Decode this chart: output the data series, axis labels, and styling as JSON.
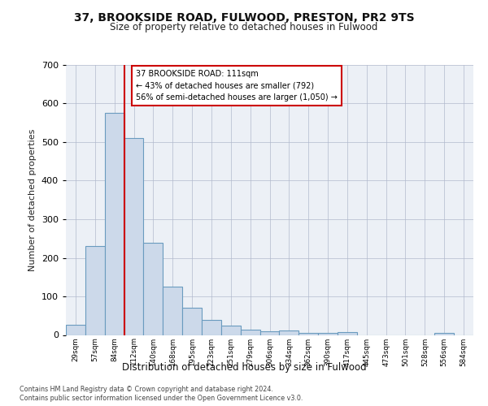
{
  "title_line1": "37, BROOKSIDE ROAD, FULWOOD, PRESTON, PR2 9TS",
  "title_line2": "Size of property relative to detached houses in Fulwood",
  "xlabel": "Distribution of detached houses by size in Fulwood",
  "ylabel": "Number of detached properties",
  "bar_color": "#ccd9ea",
  "bar_edge_color": "#6a9bbf",
  "annotation_text": "37 BROOKSIDE ROAD: 111sqm\n← 43% of detached houses are smaller (792)\n56% of semi-detached houses are larger (1,050) →",
  "annotation_box_color": "#ffffff",
  "annotation_box_edge_color": "#cc0000",
  "vline_color": "#cc0000",
  "footer_line1": "Contains HM Land Registry data © Crown copyright and database right 2024.",
  "footer_line2": "Contains public sector information licensed under the Open Government Licence v3.0.",
  "bin_labels": [
    "29sqm",
    "57sqm",
    "84sqm",
    "112sqm",
    "140sqm",
    "168sqm",
    "195sqm",
    "223sqm",
    "251sqm",
    "279sqm",
    "306sqm",
    "334sqm",
    "362sqm",
    "390sqm",
    "417sqm",
    "445sqm",
    "473sqm",
    "501sqm",
    "528sqm",
    "556sqm",
    "584sqm"
  ],
  "values": [
    26,
    230,
    575,
    510,
    240,
    125,
    70,
    40,
    25,
    14,
    10,
    11,
    5,
    5,
    7,
    0,
    0,
    0,
    0,
    5,
    0
  ],
  "vline_x": 2.5,
  "ylim": [
    0,
    700
  ],
  "yticks": [
    0,
    100,
    200,
    300,
    400,
    500,
    600,
    700
  ],
  "background_color": "#ecf0f6"
}
